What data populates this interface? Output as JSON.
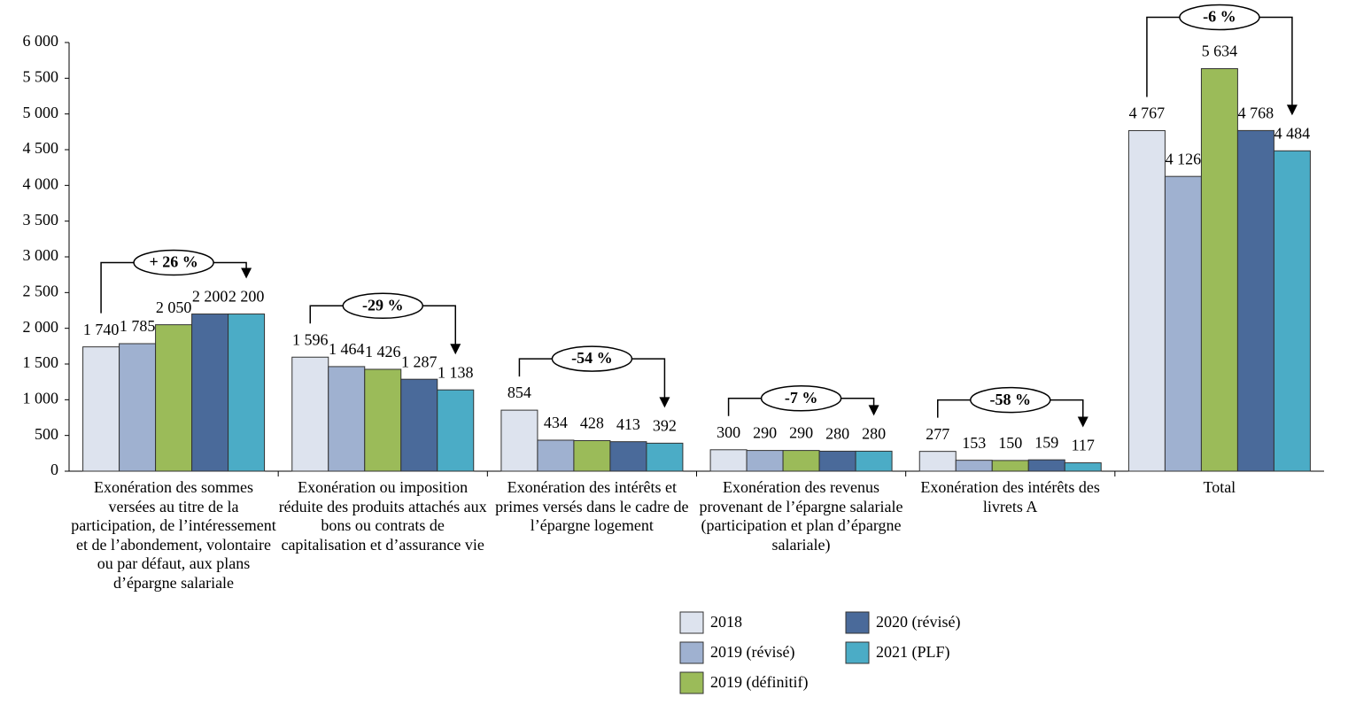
{
  "chart_data": {
    "type": "bar",
    "categories": [
      "Exonération des sommes versées au titre de la participation, de l’intéressement et de l’abondement, volontaire ou par défaut, aux plans d’épargne salariale",
      "Exonération ou imposition réduite des produits attachés aux bons ou contrats de capitalisation et d’assurance vie",
      "Exonération des intérêts et primes versés dans le cadre de l’épargne logement",
      "Exonération des revenus provenant de l’épargne salariale (participation et plan d’épargne salariale)",
      "Exonération des intérêts des livrets A",
      "Total"
    ],
    "series": [
      {
        "name": "2018",
        "color": "#dde3ee",
        "values": [
          1740,
          1596,
          854,
          300,
          277,
          4767
        ],
        "value_labels": [
          "1 740",
          "1 596",
          "854",
          "300",
          "277",
          "4 767"
        ]
      },
      {
        "name": "2019 (révisé)",
        "color": "#9fb1d0",
        "values": [
          1785,
          1464,
          434,
          290,
          153,
          4126
        ],
        "value_labels": [
          "1 785",
          "1 464",
          "434",
          "290",
          "153",
          "4 126"
        ]
      },
      {
        "name": "2019 (définitif)",
        "color": "#9bbb59",
        "values": [
          2050,
          1426,
          428,
          290,
          150,
          5634
        ],
        "value_labels": [
          "2 050",
          "1 426",
          "428",
          "290",
          "150",
          "5 634"
        ]
      },
      {
        "name": "2020 (révisé)",
        "color": "#4a6a9a",
        "values": [
          2200,
          1287,
          413,
          280,
          159,
          4768
        ],
        "value_labels": [
          "2 200",
          "1 287",
          "413",
          "280",
          "159",
          "4 768"
        ]
      },
      {
        "name": "2021 (PLF)",
        "color": "#4bacc6",
        "values": [
          2200,
          1138,
          392,
          280,
          117,
          4484
        ],
        "value_labels": [
          "2 200",
          "1 138",
          "392",
          "280",
          "117",
          "4 484"
        ]
      }
    ],
    "change_labels": [
      "+ 26 %",
      "-29 %",
      "-54 %",
      "-7 %",
      "-58 %",
      "-6 %"
    ],
    "ylim": [
      0,
      6000
    ],
    "yticks": [
      0,
      500,
      {
        "value": 1000,
        "label": "1 000"
      },
      {
        "value": 1500,
        "label": "1 500"
      },
      {
        "value": 2000,
        "label": "2 000"
      },
      {
        "value": 2500,
        "label": "2 500"
      },
      {
        "value": 3000,
        "label": "3 000"
      },
      {
        "value": 3500,
        "label": "3 500"
      },
      {
        "value": 4000,
        "label": "4 000"
      },
      {
        "value": 4500,
        "label": "4 500"
      },
      {
        "value": 5000,
        "label": "5 000"
      },
      {
        "value": 5500,
        "label": "5 500"
      },
      {
        "value": 6000,
        "label": "6 000"
      }
    ],
    "grid": false
  }
}
